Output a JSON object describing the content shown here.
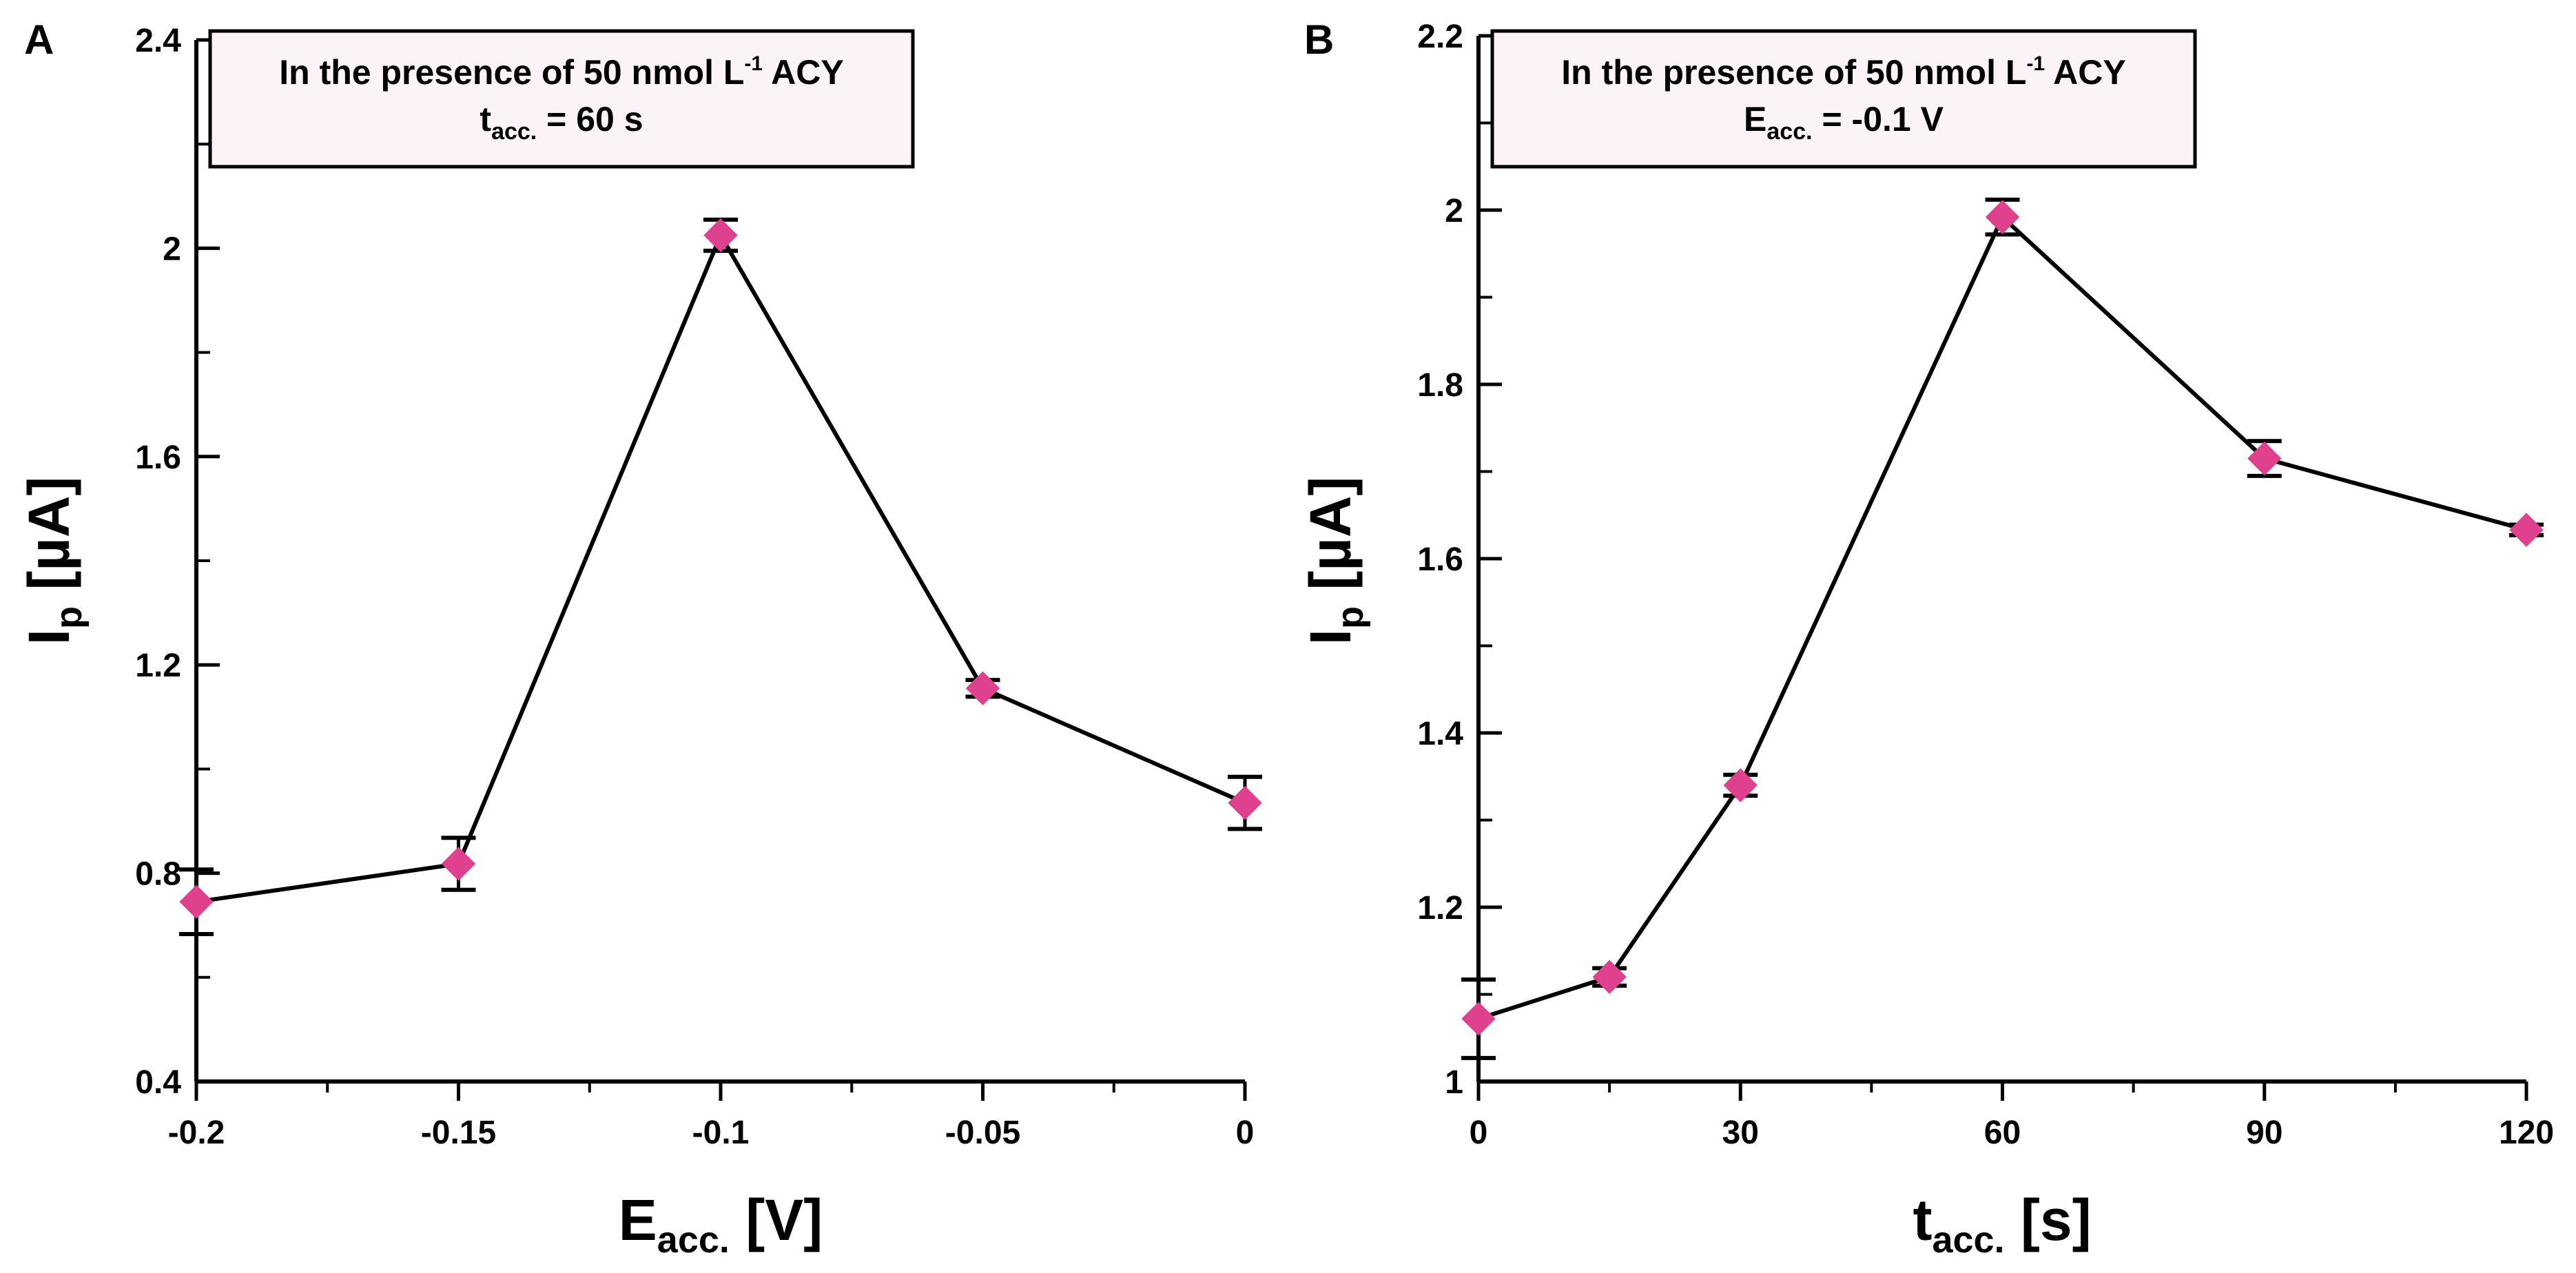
{
  "chart_data": [
    {
      "type": "line",
      "panel_label": "A",
      "legend": {
        "line1_main": "In the presence of 50 nmol L",
        "line1_sup": "-1",
        "line1_tail": " ACY",
        "line2_main": "t",
        "line2_sub": "acc.",
        "line2_tail": " = 60 s"
      },
      "xlabel": {
        "main": "E",
        "sub": "acc.",
        "tail": " [V]"
      },
      "ylabel": {
        "main": "I",
        "sub": "p",
        "tail": " [µA]"
      },
      "xlim": [
        -0.2,
        0
      ],
      "ylim": [
        0.4,
        2.4
      ],
      "xticks": [
        -0.2,
        -0.15,
        -0.1,
        -0.05,
        0
      ],
      "xtick_labels": [
        "-0.2",
        "-0.15",
        "-0.1",
        "-0.05",
        "0"
      ],
      "yticks": [
        0.4,
        0.8,
        1.2,
        1.6,
        2,
        2.4
      ],
      "ytick_labels": [
        "0.4",
        "0.8",
        "1.2",
        "1.6",
        "2",
        "2.4"
      ],
      "x": [
        -0.2,
        -0.15,
        -0.1,
        -0.05,
        0
      ],
      "y": [
        0.745,
        0.818,
        2.025,
        1.155,
        0.935
      ],
      "err": [
        0.062,
        0.05,
        0.03,
        0.016,
        0.05
      ],
      "marker_color": "#e0418f",
      "line_color": "#000000"
    },
    {
      "type": "line",
      "panel_label": "B",
      "legend": {
        "line1_main": "In the presence of 50 nmol L",
        "line1_sup": "-1",
        "line1_tail": " ACY",
        "line2_main": "E",
        "line2_sub": "acc.",
        "line2_tail": " = -0.1 V"
      },
      "xlabel": {
        "main": "t",
        "sub": "acc.",
        "tail": " [s]"
      },
      "ylabel": {
        "main": "I",
        "sub": "p",
        "tail": " [µA]"
      },
      "xlim": [
        0,
        120
      ],
      "ylim": [
        1,
        2.2
      ],
      "xticks": [
        0,
        30,
        60,
        90,
        120
      ],
      "xtick_labels": [
        "0",
        "30",
        "60",
        "90",
        "120"
      ],
      "yticks": [
        1,
        1.2,
        1.4,
        1.6,
        1.8,
        2,
        2.2
      ],
      "ytick_labels": [
        "1",
        "1.2",
        "1.4",
        "1.6",
        "1.8",
        "2",
        "2.2"
      ],
      "x": [
        0,
        15,
        30,
        60,
        90,
        120
      ],
      "y": [
        1.072,
        1.12,
        1.34,
        1.992,
        1.715,
        1.633
      ],
      "err": [
        0.045,
        0.01,
        0.012,
        0.02,
        0.02,
        0.006
      ],
      "marker_color": "#e0418f",
      "line_color": "#000000"
    }
  ]
}
